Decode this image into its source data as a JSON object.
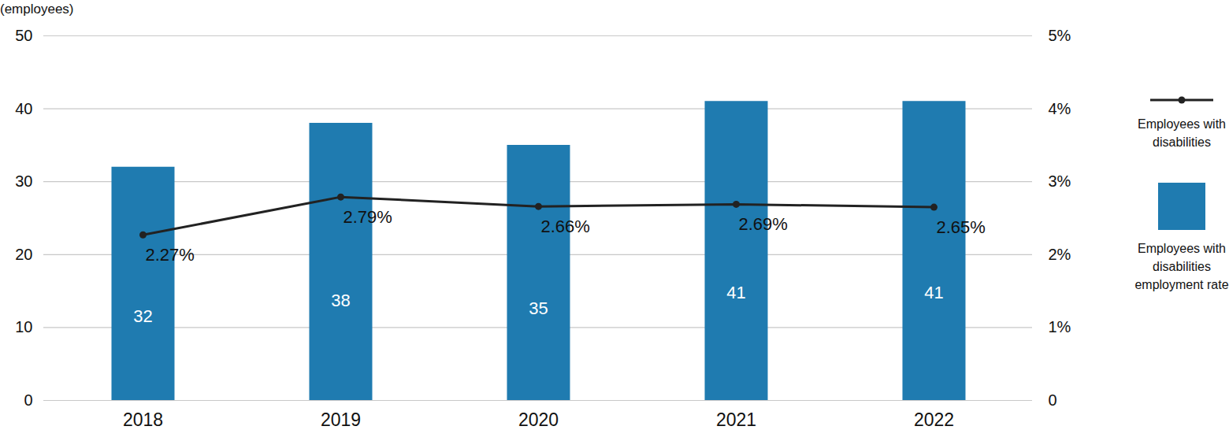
{
  "chart_data": {
    "type": "bar",
    "y_label": "(employees)",
    "categories": [
      "2018",
      "2019",
      "2020",
      "2021",
      "2022"
    ],
    "series": [
      {
        "name": "Employees with disabilities",
        "type": "line",
        "axis": "y2",
        "color": "#222222",
        "marker": "circle",
        "values": [
          2.27,
          2.79,
          2.66,
          2.69,
          2.65
        ],
        "value_labels": [
          "2.27%",
          "2.79%",
          "2.66%",
          "2.69%",
          "2.65%"
        ]
      },
      {
        "name": "Employees with disabilities employment rate",
        "type": "bar",
        "color": "#1f7bb0",
        "values": [
          32,
          38,
          35,
          41,
          41
        ]
      }
    ],
    "ylim": [
      0,
      50
    ],
    "yticks": [
      0,
      10,
      20,
      30,
      40,
      50
    ],
    "y2lim": [
      0,
      5
    ],
    "y2ticks": [
      0,
      {
        "value": 1,
        "label": "1%"
      },
      {
        "value": 2,
        "label": "2%"
      },
      {
        "value": 3,
        "label": "3%"
      },
      {
        "value": 4,
        "label": "4%"
      },
      {
        "value": 5,
        "label": "5%"
      }
    ],
    "grid": true,
    "data_labels": true,
    "legend": "right"
  }
}
